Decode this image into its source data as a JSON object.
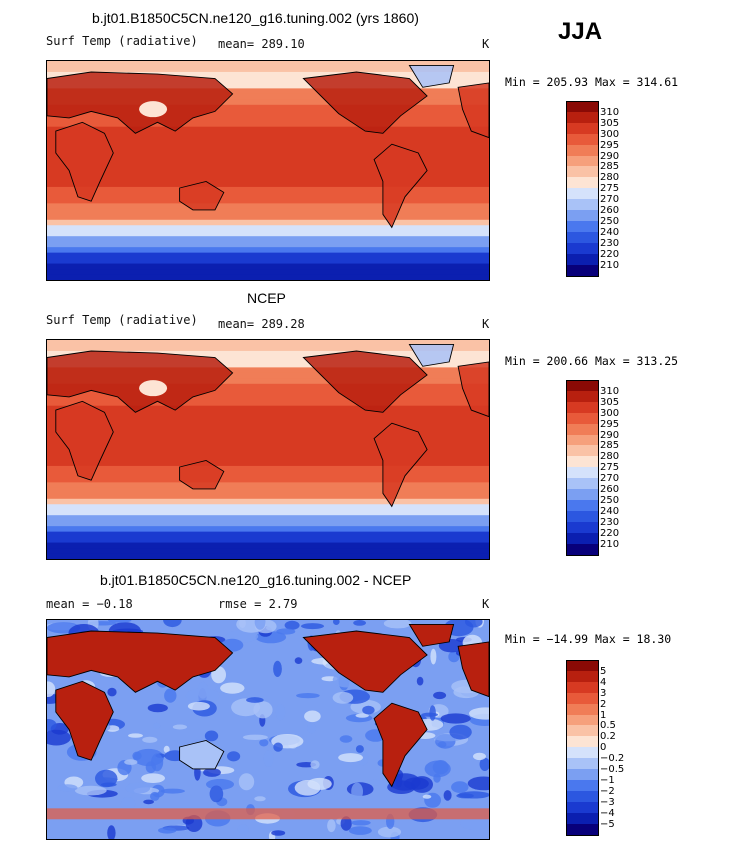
{
  "season": "JJA",
  "colors": {
    "abs": [
      "#08007a",
      "#0b1fb0",
      "#1a3ad0",
      "#2c57e0",
      "#4a78ee",
      "#7b9ff2",
      "#a9c2f7",
      "#d5e2fb",
      "#fde4d4",
      "#fac2a6",
      "#f6a07c",
      "#f07d57",
      "#e85a3a",
      "#d73a22",
      "#b8200f",
      "#8a0a05"
    ],
    "diff": [
      "#08007a",
      "#0b1fb0",
      "#1a3ad0",
      "#2c57e0",
      "#4a78ee",
      "#7b9ff2",
      "#a9c2f7",
      "#d5e2fb",
      "#fde4d4",
      "#fac2a6",
      "#f6a07c",
      "#f07d57",
      "#e85a3a",
      "#d73a22",
      "#b8200f",
      "#8a0a05"
    ]
  },
  "panels": [
    {
      "title": "b.jt01.B1850C5CN.ne120_g16.tuning.002 (yrs 1860)",
      "left": "Surf Temp (radiative)",
      "center": "mean= 289.10",
      "right": "K",
      "minmax": "Min = 205.93 Max = 314.61",
      "colorbar_labels": [
        "310",
        "305",
        "300",
        "295",
        "290",
        "285",
        "280",
        "275",
        "270",
        "260",
        "250",
        "240",
        "230",
        "220",
        "210"
      ]
    },
    {
      "title": "NCEP",
      "left": "Surf Temp (radiative)",
      "center": "mean= 289.28",
      "right": "K",
      "minmax": "Min = 200.66 Max = 313.25",
      "colorbar_labels": [
        "310",
        "305",
        "300",
        "295",
        "290",
        "285",
        "280",
        "275",
        "270",
        "260",
        "250",
        "240",
        "230",
        "220",
        "210"
      ]
    },
    {
      "title": "b.jt01.B1850C5CN.ne120_g16.tuning.002 - NCEP",
      "left": "mean =   −0.18",
      "center": "rmse =    2.79",
      "right": "K",
      "minmax": "Min = −14.99 Max =  18.30",
      "colorbar_labels": [
        "5",
        "4",
        "3",
        "2",
        "1",
        "0.5",
        "0.2",
        "0",
        "−0.2",
        "−0.5",
        "−1",
        "−2",
        "−3",
        "−4",
        "−5"
      ]
    }
  ]
}
